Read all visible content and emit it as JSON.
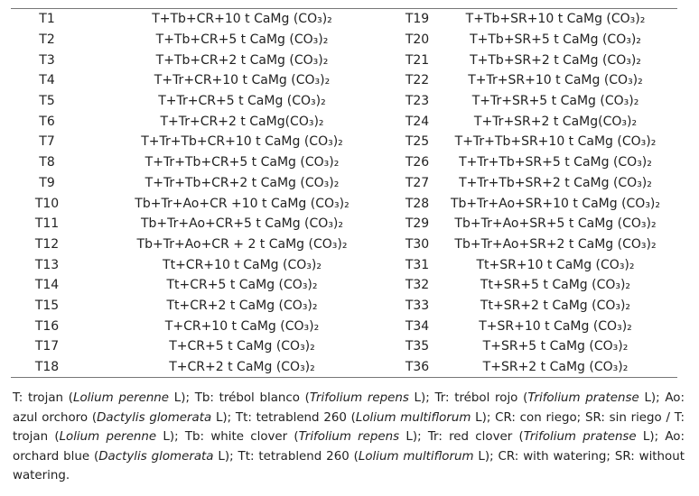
{
  "table": {
    "rows": [
      [
        "T1",
        "T+Tb+CR+10 t CaMg (CO₃)₂",
        "T19",
        "T+Tb+SR+10 t CaMg (CO₃)₂"
      ],
      [
        "T2",
        "T+Tb+CR+5 t CaMg (CO₃)₂",
        "T20",
        "T+Tb+SR+5 t CaMg (CO₃)₂"
      ],
      [
        "T3",
        "T+Tb+CR+2 t CaMg (CO₃)₂",
        "T21",
        "T+Tb+SR+2 t CaMg (CO₃)₂"
      ],
      [
        "T4",
        "T+Tr+CR+10 t CaMg (CO₃)₂",
        "T22",
        "T+Tr+SR+10 t CaMg (CO₃)₂"
      ],
      [
        "T5",
        "T+Tr+CR+5 t CaMg (CO₃)₂",
        "T23",
        "T+Tr+SR+5 t CaMg (CO₃)₂"
      ],
      [
        "T6",
        "T+Tr+CR+2 t CaMg(CO₃)₂",
        "T24",
        "T+Tr+SR+2 t CaMg(CO₃)₂"
      ],
      [
        "T7",
        "T+Tr+Tb+CR+10 t CaMg (CO₃)₂",
        "T25",
        "T+Tr+Tb+SR+10 t CaMg (CO₃)₂"
      ],
      [
        "T8",
        "T+Tr+Tb+CR+5 t CaMg (CO₃)₂",
        "T26",
        "T+Tr+Tb+SR+5 t CaMg (CO₃)₂"
      ],
      [
        "T9",
        "T+Tr+Tb+CR+2 t CaMg (CO₃)₂",
        "T27",
        "T+Tr+Tb+SR+2 t CaMg (CO₃)₂"
      ],
      [
        "T10",
        "Tb+Tr+Ao+CR +10 t CaMg (CO₃)₂",
        "T28",
        "Tb+Tr+Ao+SR+10 t CaMg (CO₃)₂"
      ],
      [
        "T11",
        "Tb+Tr+Ao+CR+5 t CaMg (CO₃)₂",
        "T29",
        "Tb+Tr+Ao+SR+5 t CaMg (CO₃)₂"
      ],
      [
        "T12",
        "Tb+Tr+Ao+CR + 2 t CaMg (CO₃)₂",
        "T30",
        "Tb+Tr+Ao+SR+2 t CaMg (CO₃)₂"
      ],
      [
        "T13",
        "Tt+CR+10 t CaMg (CO₃)₂",
        "T31",
        "Tt+SR+10 t CaMg (CO₃)₂"
      ],
      [
        "T14",
        "Tt+CR+5 t CaMg (CO₃)₂",
        "T32",
        "Tt+SR+5 t CaMg (CO₃)₂"
      ],
      [
        "T15",
        "Tt+CR+2 t CaMg (CO₃)₂",
        "T33",
        "Tt+SR+2 t CaMg (CO₃)₂"
      ],
      [
        "T16",
        "T+CR+10 t CaMg (CO₃)₂",
        "T34",
        "T+SR+10 t CaMg (CO₃)₂"
      ],
      [
        "T17",
        "T+CR+5 t CaMg (CO₃)₂",
        "T35",
        "T+SR+5 t CaMg (CO₃)₂"
      ],
      [
        "T18",
        "T+CR+2 t CaMg (CO₃)₂",
        "T36",
        "T+SR+2 t CaMg (CO₃)₂"
      ]
    ]
  },
  "footnote": [
    {
      "text": "T: trojan ("
    },
    {
      "text": "Lolium perenne",
      "italic": true
    },
    {
      "text": " L); Tb: trébol blanco ("
    },
    {
      "text": "Trifolium repens",
      "italic": true
    },
    {
      "text": " L); Tr: trébol rojo ("
    },
    {
      "text": "Trifolium pratense",
      "italic": true
    },
    {
      "text": " L); Ao: azul orchoro ("
    },
    {
      "text": "Dactylis glomerata",
      "italic": true
    },
    {
      "text": " L); Tt: tetrablend 260 ("
    },
    {
      "text": "Lolium multiflorum",
      "italic": true
    },
    {
      "text": " L); CR: con riego; SR: sin riego / T: trojan ("
    },
    {
      "text": "Lolium perenne",
      "italic": true
    },
    {
      "text": " L); Tb: white clover ("
    },
    {
      "text": "Trifolium repens",
      "italic": true
    },
    {
      "text": " L); Tr: red clover ("
    },
    {
      "text": "Trifolium pratense",
      "italic": true
    },
    {
      "text": " L); Ao: orchard blue ("
    },
    {
      "text": "Dactylis glomerata",
      "italic": true
    },
    {
      "text": " L); Tt: tetrablend 260 ("
    },
    {
      "text": "Lolium multiflorum",
      "italic": true
    },
    {
      "text": " L); CR: with watering; SR: without watering."
    }
  ]
}
